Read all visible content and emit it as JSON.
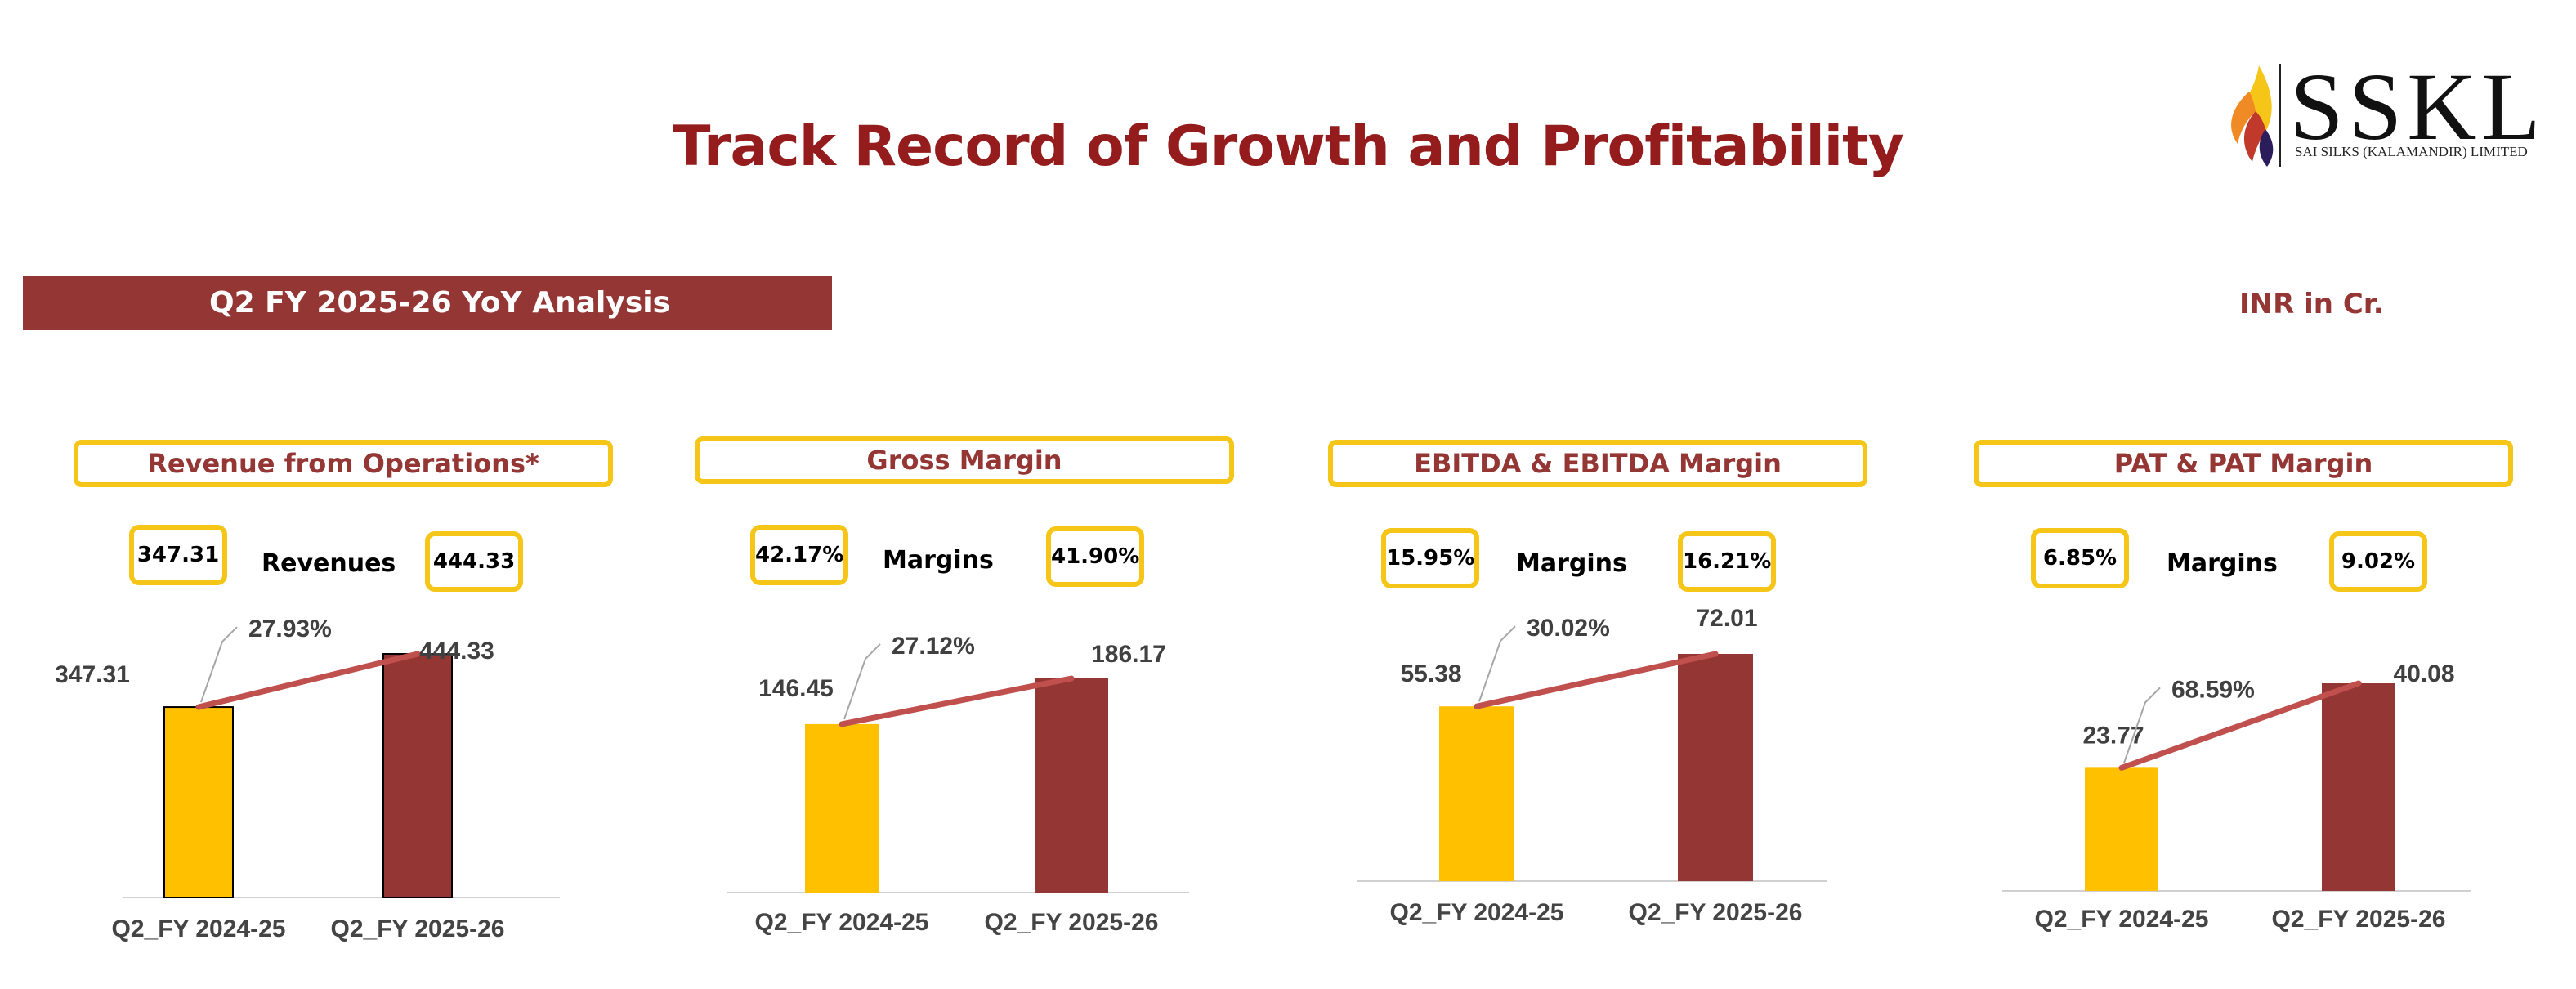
{
  "page": {
    "title": "Track Record of Growth and Profitability",
    "section_label": "Q2 FY 2025-26 YoY Analysis",
    "unit_label": "INR in Cr."
  },
  "logo": {
    "text": "SSKL",
    "subtitle": "SAI SILKS (KALAMANDIR) LIMITED"
  },
  "colors": {
    "title": "#941c1c",
    "accent": "#943634",
    "yellow": "#FFC000",
    "bar_dark": "#943634",
    "trend": "#c0504d",
    "pill_border": "#f5c518"
  },
  "panels": [
    {
      "title": "Revenue from Operations*",
      "kpi_left": "347.31",
      "kpi_label": "Revenues",
      "kpi_right": "444.33"
    },
    {
      "title": "Gross Margin",
      "kpi_left": "42.17%",
      "kpi_label": "Margins",
      "kpi_right": "41.90%"
    },
    {
      "title": "EBITDA & EBITDA Margin",
      "kpi_left": "15.95%",
      "kpi_label": "Margins",
      "kpi_right": "16.21%"
    },
    {
      "title": "PAT & PAT Margin",
      "kpi_left": "6.85%",
      "kpi_label": "Margins",
      "kpi_right": "9.02%"
    }
  ],
  "chart_data": [
    {
      "type": "bar",
      "title": "Revenue from Operations*",
      "categories": [
        "Q2_FY 2024-25",
        "Q2_FY 2025-26"
      ],
      "values": [
        347.31,
        444.33
      ],
      "data_labels": [
        "347.31",
        "444.33"
      ],
      "growth_label": "27.93%",
      "ylim": [
        0,
        480
      ]
    },
    {
      "type": "bar",
      "title": "Gross Margin",
      "categories": [
        "Q2_FY 2024-25",
        "Q2_FY 2025-26"
      ],
      "values": [
        146.45,
        186.17
      ],
      "data_labels": [
        "146.45",
        "186.17"
      ],
      "growth_label": "27.12%",
      "ylim": [
        0,
        200
      ]
    },
    {
      "type": "bar",
      "title": "EBITDA & EBITDA Margin",
      "categories": [
        "Q2_FY 2024-25",
        "Q2_FY 2025-26"
      ],
      "values": [
        55.38,
        72.01
      ],
      "data_labels": [
        "55.38",
        "72.01"
      ],
      "growth_label": "30.02%",
      "ylim": [
        0,
        78
      ]
    },
    {
      "type": "bar",
      "title": "PAT & PAT Margin",
      "categories": [
        "Q2_FY 2024-25",
        "Q2_FY 2025-26"
      ],
      "values": [
        23.77,
        40.08
      ],
      "data_labels": [
        "23.77",
        "40.08"
      ],
      "growth_label": "68.59%",
      "ylim": [
        0,
        46
      ]
    }
  ]
}
